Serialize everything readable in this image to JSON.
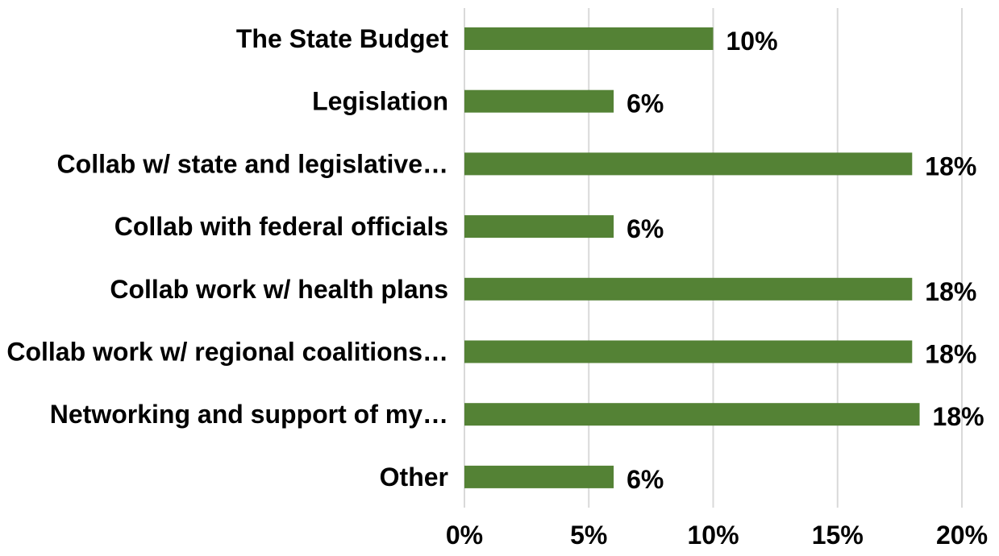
{
  "chart_data": {
    "type": "bar",
    "orientation": "horizontal",
    "categories": [
      "The State Budget",
      "Legislation",
      "Collab w/ state and legislative…",
      "Collab with federal officials",
      "Collab work w/ health plans",
      "Collab work w/ regional coalitions…",
      "Networking and support of my…",
      "Other"
    ],
    "values": [
      10,
      6,
      18,
      6,
      18,
      18,
      18.3,
      6
    ],
    "value_labels": [
      "10%",
      "6%",
      "18%",
      "6%",
      "18%",
      "18%",
      "18%",
      "6%"
    ],
    "xlim": [
      0,
      20
    ],
    "xticks": [
      0,
      5,
      10,
      15,
      20
    ],
    "xtick_labels": [
      "0%",
      "5%",
      "10%",
      "15%",
      "20%"
    ],
    "grid": true,
    "bar_color": "#548235",
    "gridline_color": "#d9d9d9",
    "title": "",
    "xlabel": "",
    "ylabel": ""
  }
}
